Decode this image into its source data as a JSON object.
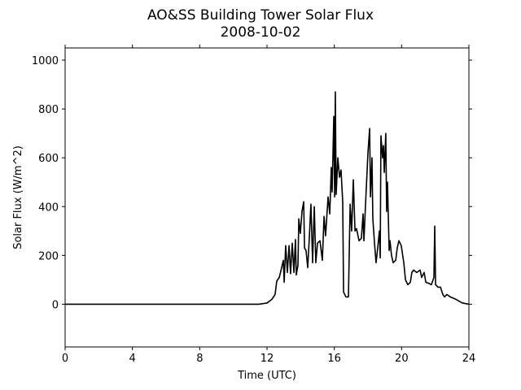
{
  "chart_data": {
    "type": "line",
    "title": "AO&SS Building Tower Solar Flux",
    "subtitle": "2008-10-02",
    "x_label": "Time (UTC)",
    "y_label": "Solar Flux (W/m^2)",
    "xlim": [
      0,
      24
    ],
    "xticks": [
      0,
      4,
      8,
      12,
      16,
      20,
      24
    ],
    "ylim": [
      -175,
      1050
    ],
    "yticks": [
      0,
      200,
      400,
      600,
      800,
      1000
    ],
    "series": [
      {
        "name": "Solar Flux",
        "color": "#000000",
        "x": [
          0,
          11.52,
          12.0,
          12.29,
          12.48,
          12.58,
          12.73,
          12.87,
          12.97,
          13.02,
          13.11,
          13.21,
          13.31,
          13.4,
          13.5,
          13.6,
          13.69,
          13.74,
          13.84,
          13.89,
          13.98,
          14.08,
          14.18,
          14.23,
          14.32,
          14.42,
          14.52,
          14.61,
          14.71,
          14.76,
          14.81,
          14.9,
          15.0,
          15.15,
          15.29,
          15.39,
          15.48,
          15.63,
          15.73,
          15.82,
          15.87,
          15.97,
          16.02,
          16.06,
          16.11,
          16.21,
          16.31,
          16.4,
          16.5,
          16.55,
          16.69,
          16.84,
          16.94,
          17.03,
          17.13,
          17.23,
          17.32,
          17.47,
          17.61,
          17.71,
          17.76,
          17.85,
          18.0,
          18.1,
          18.15,
          18.24,
          18.29,
          18.39,
          18.48,
          18.58,
          18.68,
          18.73,
          18.77,
          18.87,
          18.92,
          18.97,
          19.06,
          19.11,
          19.16,
          19.26,
          19.31,
          19.4,
          19.5,
          19.65,
          19.74,
          19.84,
          19.98,
          20.13,
          20.23,
          20.37,
          20.52,
          20.61,
          20.71,
          20.9,
          21.1,
          21.19,
          21.34,
          21.44,
          21.63,
          21.77,
          21.92,
          21.97,
          22.02,
          22.16,
          22.31,
          22.45,
          22.55,
          22.69,
          22.89,
          23.23,
          23.61,
          24
        ],
        "values": [
          0,
          0,
          5,
          20,
          40,
          95,
          110,
          150,
          180,
          90,
          240,
          130,
          240,
          125,
          250,
          130,
          265,
          120,
          160,
          350,
          290,
          380,
          420,
          230,
          220,
          150,
          280,
          410,
          170,
          290,
          400,
          170,
          250,
          260,
          180,
          360,
          280,
          440,
          370,
          560,
          460,
          770,
          440,
          870,
          450,
          600,
          520,
          550,
          420,
          50,
          30,
          30,
          410,
          300,
          510,
          300,
          310,
          260,
          270,
          370,
          260,
          400,
          620,
          720,
          440,
          600,
          350,
          250,
          170,
          230,
          300,
          190,
          690,
          600,
          650,
          540,
          700,
          380,
          500,
          220,
          260,
          200,
          170,
          180,
          230,
          260,
          240,
          170,
          100,
          80,
          90,
          130,
          140,
          130,
          140,
          110,
          130,
          90,
          85,
          80,
          110,
          320,
          80,
          70,
          70,
          40,
          30,
          40,
          30,
          20,
          5,
          0
        ]
      }
    ]
  }
}
